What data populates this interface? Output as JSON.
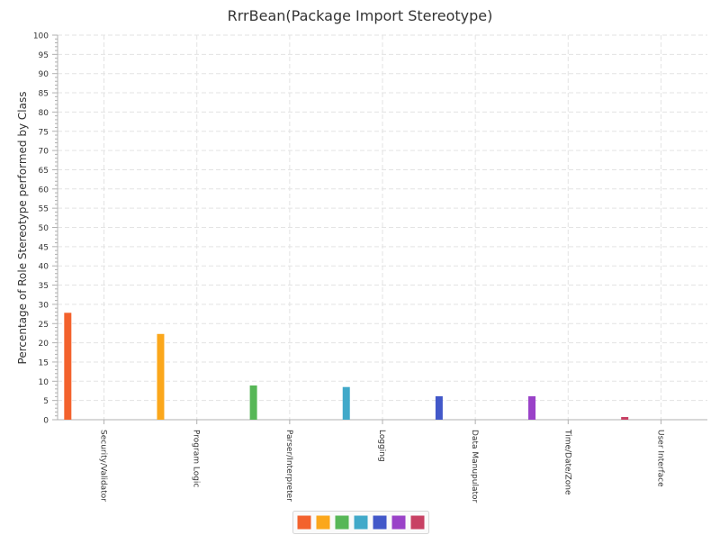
{
  "chart_data": {
    "type": "bar",
    "title": "RrrBean(Package Import Stereotype)",
    "xlabel": "",
    "ylabel": "Percentage of Role Stereotype performed by Class",
    "categories": [
      "Security/Validator",
      "Program Logic",
      "Parser/Interpreter",
      "Logging",
      "Data Manupulator",
      "Time/Date/Zone",
      "User Interface"
    ],
    "values": [
      27.8,
      22.3,
      8.9,
      8.5,
      6.1,
      6.1,
      0.7
    ],
    "colors": [
      "#f3622d",
      "#fba71b",
      "#57b757",
      "#41a9c9",
      "#4258c9",
      "#9a42c8",
      "#c84164"
    ],
    "ylim": [
      0,
      100
    ],
    "ytick_step": 5,
    "grid": true,
    "legend": {
      "placement": "bottom-center",
      "swatch_colors": [
        "#f3622d",
        "#fba71b",
        "#57b757",
        "#41a9c9",
        "#4258c9",
        "#9a42c8",
        "#c84164"
      ]
    }
  }
}
